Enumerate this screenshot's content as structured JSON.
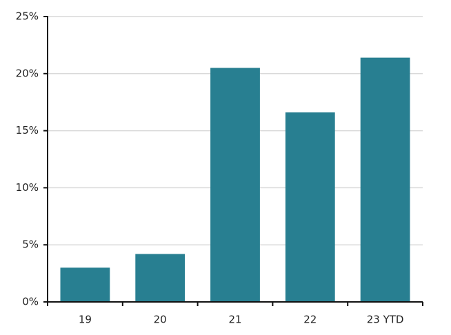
{
  "chart_data": {
    "type": "bar",
    "categories": [
      "19",
      "20",
      "21",
      "22",
      "23 YTD"
    ],
    "values": [
      3.0,
      4.2,
      20.5,
      16.6,
      21.4
    ],
    "color": "#287f91",
    "ylim": [
      0,
      25
    ],
    "yticks": [
      {
        "value": 0,
        "label": "0%"
      },
      {
        "value": 5,
        "label": "5%"
      },
      {
        "value": 10,
        "label": "10%"
      },
      {
        "value": 15,
        "label": "15%"
      },
      {
        "value": 20,
        "label": "20%"
      },
      {
        "value": 25,
        "label": "25%"
      }
    ],
    "grid": true
  }
}
